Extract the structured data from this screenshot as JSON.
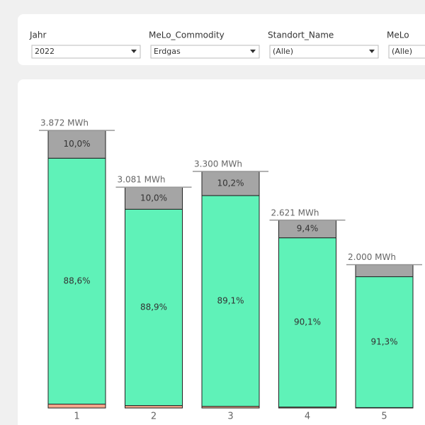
{
  "filters": [
    {
      "label": "Jahr",
      "value": "2022"
    },
    {
      "label": "MeLo_Commodity",
      "value": "Erdgas"
    },
    {
      "label": "Standort_Name",
      "value": "(Alle)"
    },
    {
      "label": "MeLo",
      "value": "(Alle)"
    }
  ],
  "chart_data": {
    "type": "stacked-bar",
    "categories": [
      "1",
      "2",
      "3",
      "4",
      "5"
    ],
    "totals": {
      "values": [
        3872,
        3081,
        3300,
        2621,
        2000
      ],
      "value_labels": [
        "3.872 MWh",
        "3.081 MWh",
        "3.300 MWh",
        "2.621 MWh",
        "2.000 MWh"
      ]
    },
    "series": [
      {
        "color": "#f4a58a",
        "values": [
          1.4,
          1.1,
          0.7,
          0.5,
          0.3
        ]
      },
      {
        "color": "#5ff2b8",
        "values": [
          88.6,
          88.9,
          89.1,
          90.1,
          91.3
        ],
        "value_labels": [
          "88,6%",
          "88,9%",
          "89,1%",
          "90,1%",
          "91,3%"
        ]
      },
      {
        "color": "#a5a5a5",
        "values": [
          10.0,
          10.0,
          10.2,
          9.4,
          8.4
        ],
        "value_labels": [
          "10,0%",
          "10,0%",
          "10,2%",
          "9,4%",
          null
        ]
      }
    ]
  }
}
